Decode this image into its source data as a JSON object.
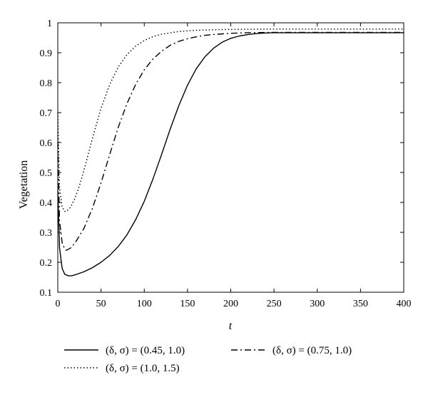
{
  "chart_data": {
    "type": "line",
    "xlabel": "t",
    "ylabel": "Vegetation",
    "xlim": [
      0,
      400
    ],
    "ylim": [
      0.1,
      1.0
    ],
    "xticks": [
      "0",
      "50",
      "100",
      "150",
      "200",
      "250",
      "300",
      "350",
      "400"
    ],
    "yticks": [
      "0.1",
      "0.2",
      "0.3",
      "0.4",
      "0.5",
      "0.6",
      "0.7",
      "0.8",
      "0.9",
      "1"
    ],
    "grid": false,
    "legend_position": "bottom",
    "series": [
      {
        "name": "(δ, σ) = (0.45, 1.0)",
        "style": "solid",
        "color": "#000000",
        "x": [
          0,
          2,
          5,
          8,
          12,
          16,
          20,
          30,
          40,
          50,
          60,
          70,
          80,
          90,
          100,
          110,
          120,
          130,
          140,
          150,
          160,
          170,
          180,
          190,
          200,
          210,
          220,
          230,
          240,
          250,
          260,
          280,
          300,
          350,
          400
        ],
        "y": [
          0.44,
          0.25,
          0.18,
          0.16,
          0.155,
          0.155,
          0.158,
          0.168,
          0.182,
          0.2,
          0.223,
          0.253,
          0.292,
          0.342,
          0.404,
          0.478,
          0.56,
          0.645,
          0.724,
          0.792,
          0.846,
          0.886,
          0.915,
          0.935,
          0.948,
          0.956,
          0.961,
          0.964,
          0.966,
          0.967,
          0.967,
          0.967,
          0.967,
          0.967,
          0.967
        ]
      },
      {
        "name": "(δ, σ) = (0.75, 1.0)",
        "style": "dashdot",
        "color": "#000000",
        "x": [
          0,
          2,
          5,
          8,
          10,
          15,
          20,
          30,
          40,
          50,
          60,
          70,
          80,
          90,
          100,
          110,
          120,
          130,
          140,
          150,
          160,
          170,
          180,
          200,
          220,
          250,
          300,
          350,
          400
        ],
        "y": [
          0.6,
          0.34,
          0.265,
          0.245,
          0.24,
          0.248,
          0.265,
          0.312,
          0.38,
          0.465,
          0.56,
          0.652,
          0.73,
          0.794,
          0.843,
          0.879,
          0.905,
          0.925,
          0.938,
          0.947,
          0.953,
          0.958,
          0.961,
          0.965,
          0.967,
          0.968,
          0.968,
          0.968,
          0.968
        ]
      },
      {
        "name": "(δ, σ) = (1.0, 1.5)",
        "style": "dotted",
        "color": "#000000",
        "x": [
          0,
          2,
          5,
          8,
          10,
          15,
          20,
          25,
          30,
          40,
          50,
          60,
          70,
          80,
          90,
          100,
          110,
          120,
          140,
          160,
          180,
          200,
          250,
          300,
          350,
          400
        ],
        "y": [
          0.7,
          0.45,
          0.385,
          0.37,
          0.37,
          0.385,
          0.415,
          0.455,
          0.505,
          0.613,
          0.714,
          0.794,
          0.853,
          0.894,
          0.922,
          0.941,
          0.954,
          0.962,
          0.971,
          0.975,
          0.977,
          0.978,
          0.979,
          0.979,
          0.979,
          0.979
        ]
      }
    ]
  }
}
